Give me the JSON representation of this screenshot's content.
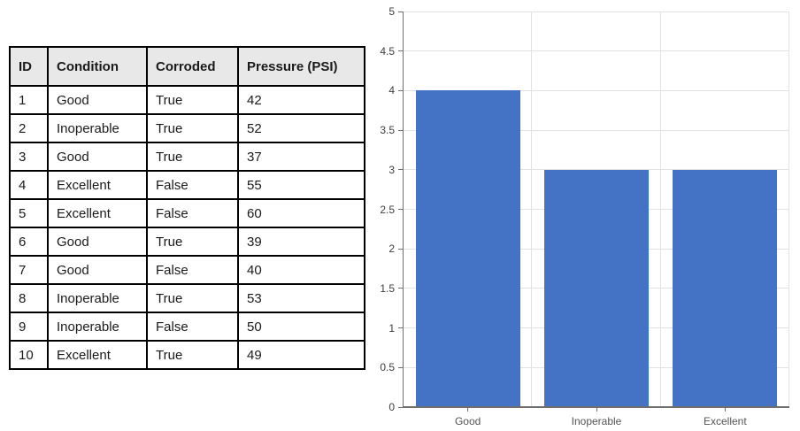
{
  "table": {
    "headers": [
      "ID",
      "Condition",
      "Corroded",
      "Pressure (PSI)"
    ],
    "rows": [
      [
        "1",
        "Good",
        "True",
        "42"
      ],
      [
        "2",
        "Inoperable",
        "True",
        "52"
      ],
      [
        "3",
        "Good",
        "True",
        "37"
      ],
      [
        "4",
        "Excellent",
        "False",
        "55"
      ],
      [
        "5",
        "Excellent",
        "False",
        "60"
      ],
      [
        "6",
        "Good",
        "True",
        "39"
      ],
      [
        "7",
        "Good",
        "False",
        "40"
      ],
      [
        "8",
        "Inoperable",
        "True",
        "53"
      ],
      [
        "9",
        "Inoperable",
        "False",
        "50"
      ],
      [
        "10",
        "Excellent",
        "True",
        "49"
      ]
    ],
    "header_bg": "#E8E8E8",
    "border_color": "#000000"
  },
  "chart_data": {
    "type": "bar",
    "categories": [
      "Good",
      "Inoperable",
      "Excellent"
    ],
    "values": [
      4,
      3,
      3
    ],
    "title": "",
    "xlabel": "",
    "ylabel": "",
    "ylim": [
      0,
      5
    ],
    "ytick_step": 0.5,
    "yticks": [
      0,
      0.5,
      1,
      1.5,
      2,
      2.5,
      3,
      3.5,
      4,
      4.5,
      5
    ],
    "grid": "on",
    "legend": "none",
    "bar_color": "#4472C4",
    "gridline_color": "#E2E2E2",
    "axis_color": "#6f6f6f",
    "tick_label_color": "#3d3d3d"
  }
}
